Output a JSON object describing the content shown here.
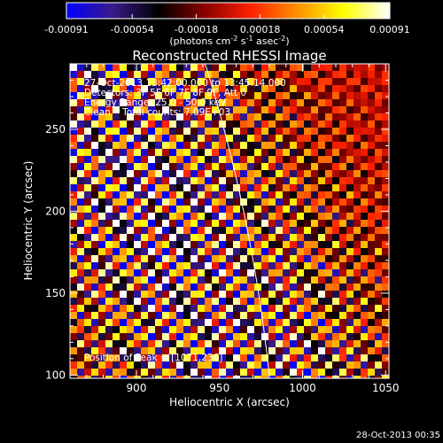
{
  "chart_data": {
    "type": "heatmap",
    "title": "Reconstructed RHESSI Image",
    "xlabel": "Heliocentric X (arcsec)",
    "ylabel": "Heliocentric Y (arcsec)",
    "xlim": [
      860,
      1052
    ],
    "ylim": [
      98,
      290
    ],
    "x_ticks": [
      900,
      950,
      1000,
      1050
    ],
    "y_ticks": [
      100,
      150,
      200,
      250
    ],
    "colorbar": {
      "colormap": [
        "#0000ff",
        "#3a1a8a",
        "#000000",
        "#8a0000",
        "#ff2000",
        "#ff9000",
        "#ffff00",
        "#ffffff"
      ],
      "range": [
        -0.00091,
        0.00091
      ],
      "tick_labels": [
        "-0.00091",
        "-0.00054",
        "-0.00018",
        "0.00018",
        "0.00054",
        "0.00091"
      ],
      "unit_text": "(photons cm",
      "unit_sup1": "-2",
      "unit_mid": " s",
      "unit_sup2": "-1",
      "unit_mid2": " asec",
      "unit_sup3": "-2",
      "unit_end": ")"
    },
    "annotations": [
      "27-Oct-2013 13:42:00.000 to 13:45:14.000",
      "Detectors: 3F 5F 6F 7F 8F 9F, Att 0",
      "Energy Range: 25.0 - 50.0 keV",
      "Clean    Total counts: 7.09E+03"
    ],
    "peak_label": "Position of Peak = [1071,236]",
    "timestamp": "28-Oct-2013 00:35"
  }
}
